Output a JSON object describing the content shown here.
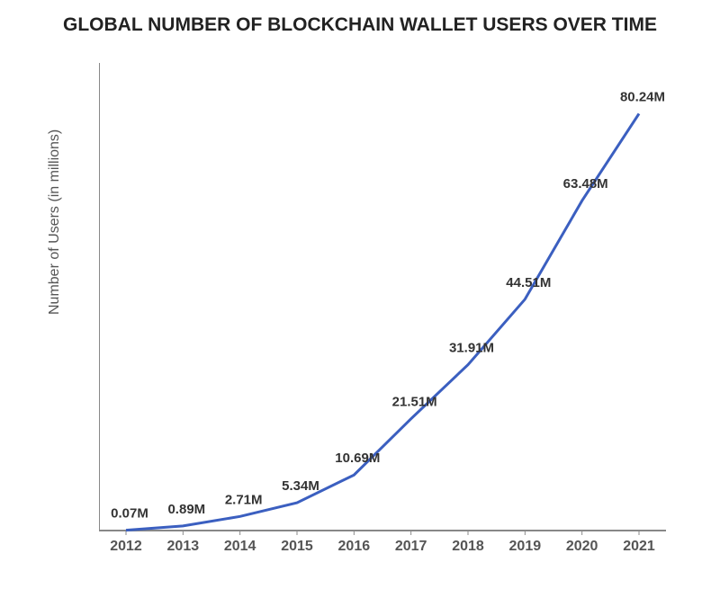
{
  "chart": {
    "type": "line",
    "title": "GLOBAL NUMBER OF BLOCKCHAIN WALLET USERS OVER TIME",
    "title_fontsize": 21,
    "title_color": "#222222",
    "ylabel": "Number of Users (in millions)",
    "ylabel_fontsize": 16,
    "ylabel_color": "#555555",
    "background_color": "#ffffff",
    "axis_color": "#888888",
    "axis_width": 2,
    "line_color": "#3b5fc0",
    "line_width": 3,
    "tick_label_color": "#555555",
    "tick_fontsize": 16,
    "data_label_color": "#333333",
    "data_label_fontsize": 15,
    "ylim": [
      0,
      90
    ],
    "ytick_step": 10,
    "ytick_suffix": "M",
    "categories": [
      "2012",
      "2013",
      "2014",
      "2015",
      "2016",
      "2017",
      "2018",
      "2019",
      "2020",
      "2021"
    ],
    "values": [
      0.07,
      0.89,
      2.71,
      5.34,
      10.69,
      21.51,
      31.91,
      44.51,
      63.48,
      80.24
    ],
    "data_labels": [
      "0.07M",
      "0.89M",
      "2.71M",
      "5.34M",
      "10.69M",
      "21.51M",
      "31.91M",
      "44.51M",
      "63.48M",
      "80.24M"
    ],
    "grid": false
  }
}
